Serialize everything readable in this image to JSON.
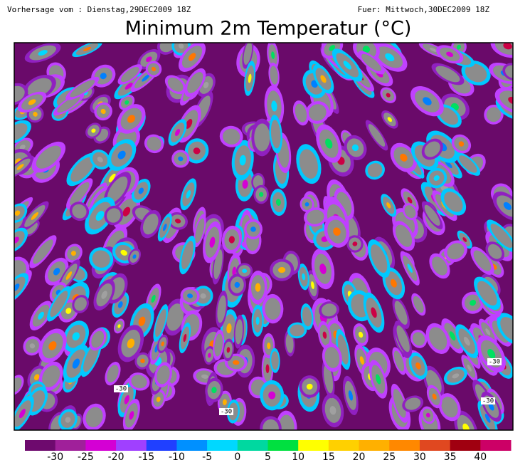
{
  "header": {
    "left": "Vorhersage vom : Dienstag,29DEC2009 18Z",
    "right": "Fuer: Mittwoch,30DEC2009 18Z",
    "title": "Minimum 2m Temperatur (°C)"
  },
  "map": {
    "contour_labels": [
      "-30",
      "-30",
      "-30",
      "-30"
    ]
  },
  "colorbar": {
    "labels": [
      -30,
      -25,
      -20,
      -15,
      -10,
      -5,
      0,
      5,
      10,
      15,
      20,
      25,
      30,
      35,
      40
    ]
  }
}
